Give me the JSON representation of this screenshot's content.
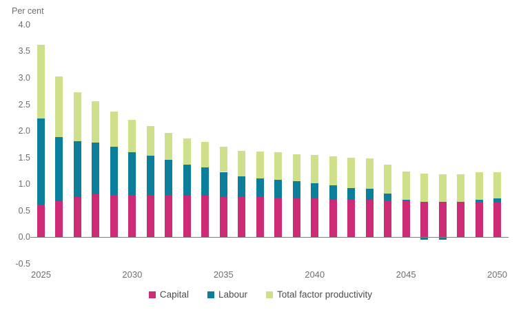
{
  "chart_data": {
    "type": "bar",
    "stacked": true,
    "unit_label": "Per cent",
    "grid": false,
    "legend_position": "bottom",
    "ylim": [
      -0.5,
      4.0
    ],
    "yticks": [
      {
        "value": 4.0,
        "label": "4.0"
      },
      {
        "value": 3.5,
        "label": "3.5"
      },
      {
        "value": 3.0,
        "label": "3.0"
      },
      {
        "value": 2.5,
        "label": "2.5"
      },
      {
        "value": 2.0,
        "label": "2.0"
      },
      {
        "value": 1.5,
        "label": "1.5"
      },
      {
        "value": 1.0,
        "label": "1.0"
      },
      {
        "value": 0.5,
        "label": "0.5"
      },
      {
        "value": 0.0,
        "label": "0.0"
      },
      {
        "value": -0.5,
        "label": "-0.5"
      }
    ],
    "categories": [
      2025,
      2026,
      2027,
      2028,
      2029,
      2030,
      2031,
      2032,
      2033,
      2034,
      2035,
      2036,
      2037,
      2038,
      2039,
      2040,
      2041,
      2042,
      2043,
      2044,
      2045,
      2046,
      2047,
      2048,
      2049,
      2050
    ],
    "xticks": [
      {
        "year": 2025,
        "label": "2025"
      },
      {
        "year": 2030,
        "label": "2030"
      },
      {
        "year": 2035,
        "label": "2035"
      },
      {
        "year": 2040,
        "label": "2040"
      },
      {
        "year": 2045,
        "label": "2045"
      },
      {
        "year": 2050,
        "label": "2050"
      }
    ],
    "series": [
      {
        "name": "Capital",
        "color": "#ce2b77",
        "values": [
          0.61,
          0.68,
          0.76,
          0.81,
          0.8,
          0.79,
          0.79,
          0.79,
          0.78,
          0.78,
          0.77,
          0.76,
          0.76,
          0.75,
          0.73,
          0.73,
          0.71,
          0.7,
          0.7,
          0.69,
          0.69,
          0.67,
          0.67,
          0.67,
          0.67,
          0.65
        ]
      },
      {
        "name": "Labour",
        "color": "#0b7e9c",
        "values": [
          1.63,
          1.21,
          1.05,
          0.97,
          0.9,
          0.81,
          0.75,
          0.67,
          0.59,
          0.54,
          0.46,
          0.39,
          0.35,
          0.33,
          0.32,
          0.28,
          0.27,
          0.23,
          0.21,
          0.13,
          0.02,
          -0.04,
          -0.04,
          0.0,
          0.03,
          0.08
        ]
      },
      {
        "name": "Total factor productivity",
        "color": "#cfe08a",
        "values": [
          1.38,
          1.14,
          0.92,
          0.78,
          0.66,
          0.61,
          0.55,
          0.5,
          0.49,
          0.48,
          0.47,
          0.47,
          0.5,
          0.52,
          0.51,
          0.54,
          0.54,
          0.56,
          0.57,
          0.54,
          0.53,
          0.53,
          0.52,
          0.52,
          0.53,
          0.5
        ]
      }
    ],
    "axis_color": "#7f7f7f",
    "tick_text_color": "#6d6e71",
    "legend_text_color": "#4c4c4e"
  }
}
